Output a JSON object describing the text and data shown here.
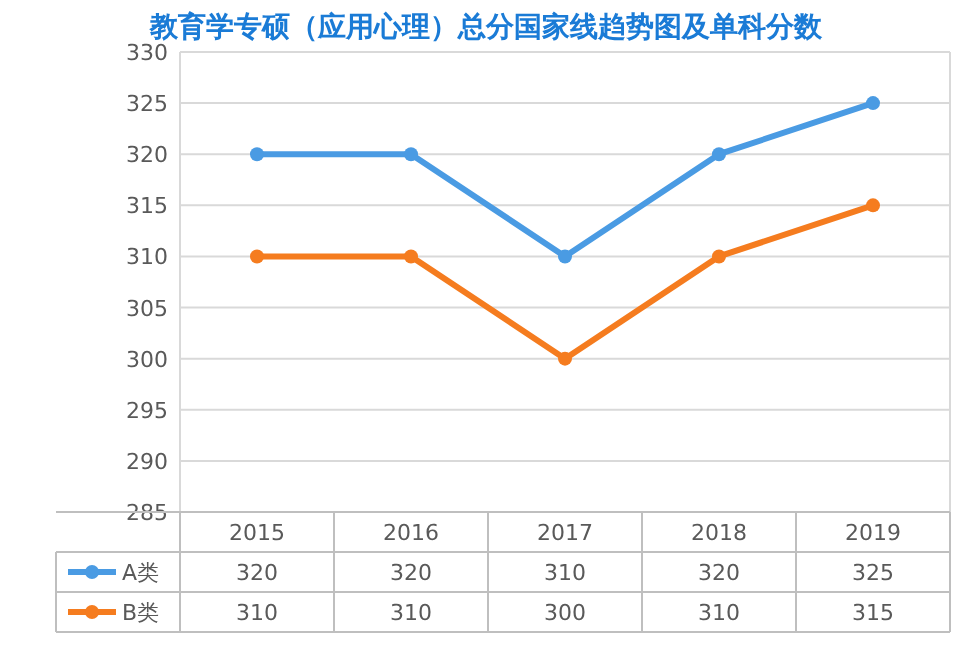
{
  "chart_data": {
    "type": "line",
    "title": "教育学专硕（应用心理）总分国家线趋势图及单科分数",
    "categories": [
      "2015",
      "2016",
      "2017",
      "2018",
      "2019"
    ],
    "series": [
      {
        "name": "A类",
        "color": "#4a9be3",
        "values": [
          320,
          320,
          310,
          320,
          325
        ]
      },
      {
        "name": "B类",
        "color": "#f57c1f",
        "values": [
          310,
          310,
          300,
          310,
          315
        ]
      }
    ],
    "ylim": [
      285,
      330
    ],
    "yticks": [
      285,
      290,
      295,
      300,
      305,
      310,
      315,
      320,
      325,
      330
    ],
    "grid": "y",
    "legend": "bottom",
    "marker": "circle",
    "line_style": "solid",
    "data_labels": true
  }
}
